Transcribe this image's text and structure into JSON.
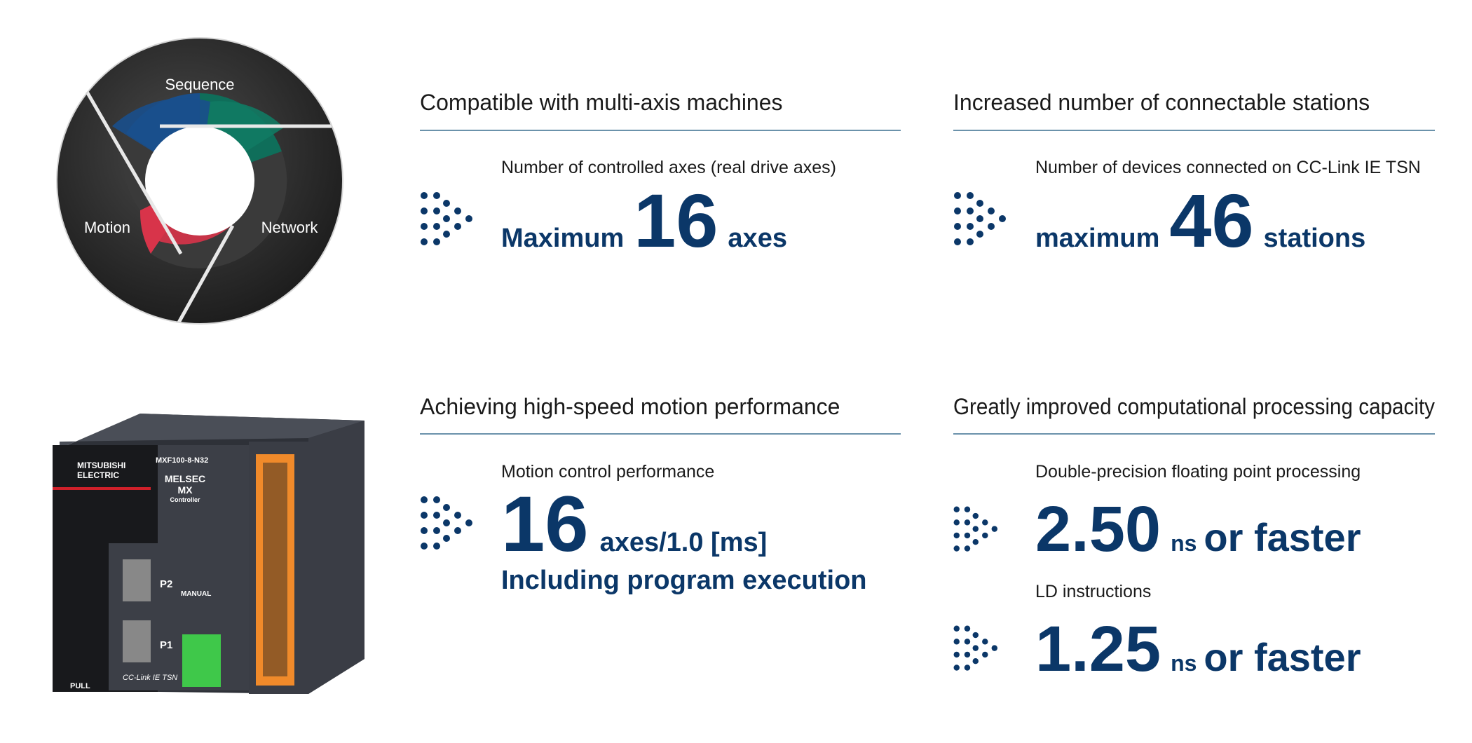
{
  "diagram": {
    "labels": [
      "Sequence",
      "Motion",
      "Network"
    ]
  },
  "product": {
    "labels": [
      "MITSUBISHI",
      "ELECTRIC",
      "MXF100-8-N32",
      "MELSEC",
      "MX",
      "Controller",
      "P2",
      "P1",
      "MANUAL",
      "CC-Link IE TSN",
      "PULL"
    ]
  },
  "panels": [
    {
      "title": "Compatible with multi-axis machines",
      "description": "Number of controlled axes (real drive axes)",
      "prefix": "Maximum",
      "value": "16",
      "unit": "axes"
    },
    {
      "title": "Increased number of connectable stations",
      "description": "Number of devices connected on CC-Link IE TSN",
      "prefix": "maximum",
      "value": "46",
      "unit": "stations"
    },
    {
      "title": "Achieving high-speed motion performance",
      "description": "Motion control performance",
      "value": "16",
      "unit": "axes/1.0 [ms]",
      "note": "Including program execution"
    },
    {
      "title": "Greatly improved computational processing capacity",
      "items": [
        {
          "description": "Double-precision floating point processing",
          "value": "2.50",
          "unit": "ns",
          "suffix": "or faster"
        },
        {
          "description": "LD instructions",
          "value": "1.25",
          "unit": "ns",
          "suffix": "or faster"
        }
      ]
    }
  ]
}
